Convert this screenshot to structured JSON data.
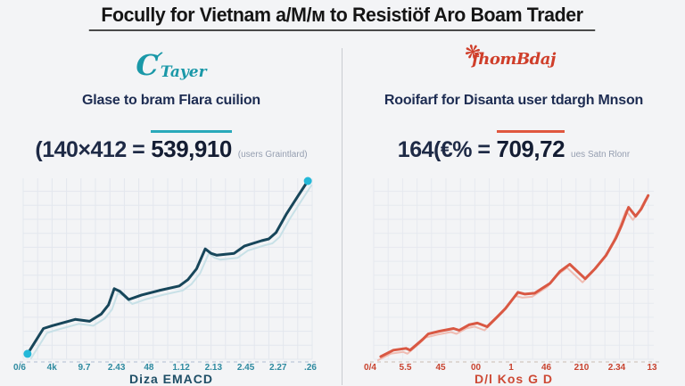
{
  "page": {
    "title": "Focully for Vietnam a/M/м to Resistiöf Aro Boam Trader"
  },
  "panels": [
    {
      "logo": {
        "glyph": "C",
        "text": "Tayer",
        "icon": "swoosh-icon",
        "color": "#1a98a8"
      },
      "subtitle": "Glase to bram Flara cuilion",
      "equation": {
        "prefix": "(140×412 =",
        "value": "539,910",
        "suffix": "(users Graintlard)"
      },
      "axis_title": "Diza EMACD",
      "accent": "#2aa9ba"
    },
    {
      "logo": {
        "glyph": "❋",
        "text": "fhomBdaj",
        "icon": "flower-icon",
        "color": "#cf3e2a"
      },
      "subtitle": "Rooifarf for Disanta user tdargh Mnson",
      "equation": {
        "prefix": "164(€% =",
        "value": "709,72",
        "suffix": "ues Satn Rlonr"
      },
      "axis_title": "D/l Kos G D",
      "accent": "#e0573f"
    }
  ],
  "chart_data": [
    {
      "type": "line",
      "title": "Glase to bram Flara cuilion",
      "xlabel": "Diza EMACD",
      "ylabel": "",
      "x_tick_labels": [
        "0/6",
        "4k",
        "9.7",
        "2.43",
        "48",
        "1.12",
        "2.13",
        "2.45",
        "2.27",
        ".26"
      ],
      "ylim": [
        0,
        1
      ],
      "grid": true,
      "grid_color": "#e3e7ee",
      "axis_dash_color": "#c6cedd",
      "label_color": "#2e8aa0",
      "line_color": "#17465a",
      "shadow_color": "#c3dfe6",
      "endpoint_dot_color": "#24b8d8",
      "series": [
        {
          "name": "main",
          "points": [
            [
              0.015,
              0.03
            ],
            [
              0.07,
              0.17
            ],
            [
              0.1,
              0.185
            ],
            [
              0.18,
              0.22
            ],
            [
              0.23,
              0.21
            ],
            [
              0.27,
              0.25
            ],
            [
              0.295,
              0.3
            ],
            [
              0.315,
              0.39
            ],
            [
              0.335,
              0.375
            ],
            [
              0.365,
              0.33
            ],
            [
              0.41,
              0.355
            ],
            [
              0.47,
              0.38
            ],
            [
              0.54,
              0.405
            ],
            [
              0.57,
              0.44
            ],
            [
              0.6,
              0.5
            ],
            [
              0.63,
              0.61
            ],
            [
              0.65,
              0.585
            ],
            [
              0.67,
              0.575
            ],
            [
              0.73,
              0.585
            ],
            [
              0.765,
              0.625
            ],
            [
              0.825,
              0.655
            ],
            [
              0.85,
              0.665
            ],
            [
              0.875,
              0.7
            ],
            [
              0.91,
              0.8
            ],
            [
              0.95,
              0.9
            ],
            [
              0.985,
              0.985
            ]
          ]
        }
      ],
      "shadow_offset": [
        4,
        5
      ]
    },
    {
      "type": "line",
      "title": "Rooifarf for Disanta user tdargh Mnson",
      "xlabel": "D/l Kos G D",
      "ylabel": "",
      "x_tick_labels": [
        "0/4",
        "5.5",
        "45",
        "00",
        "1",
        "46",
        "210",
        "2.34",
        "13"
      ],
      "ylim": [
        0,
        1
      ],
      "grid": true,
      "grid_color": "#e6e9ef",
      "axis_dash_color": "#d8cfc9",
      "label_color": "#c8432f",
      "line_color": "#d95843",
      "shadow_color": "#efb6ab",
      "endpoint_dot_color": null,
      "series": [
        {
          "name": "main",
          "points": [
            [
              0.025,
              0.015
            ],
            [
              0.07,
              0.05
            ],
            [
              0.115,
              0.06
            ],
            [
              0.13,
              0.05
            ],
            [
              0.175,
              0.11
            ],
            [
              0.195,
              0.14
            ],
            [
              0.235,
              0.155
            ],
            [
              0.285,
              0.17
            ],
            [
              0.305,
              0.16
            ],
            [
              0.34,
              0.19
            ],
            [
              0.37,
              0.2
            ],
            [
              0.405,
              0.18
            ],
            [
              0.435,
              0.225
            ],
            [
              0.47,
              0.28
            ],
            [
              0.5,
              0.34
            ],
            [
              0.515,
              0.37
            ],
            [
              0.54,
              0.36
            ],
            [
              0.575,
              0.365
            ],
            [
              0.6,
              0.39
            ],
            [
              0.63,
              0.42
            ],
            [
              0.665,
              0.485
            ],
            [
              0.7,
              0.525
            ],
            [
              0.755,
              0.445
            ],
            [
              0.79,
              0.5
            ],
            [
              0.83,
              0.575
            ],
            [
              0.865,
              0.67
            ],
            [
              0.885,
              0.74
            ],
            [
              0.91,
              0.84
            ],
            [
              0.935,
              0.79
            ],
            [
              0.955,
              0.83
            ],
            [
              0.98,
              0.905
            ]
          ]
        }
      ],
      "shadow_offset": [
        -3,
        4
      ]
    }
  ]
}
